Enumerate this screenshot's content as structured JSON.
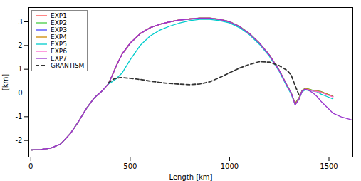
{
  "chart_data": {
    "type": "line",
    "xlabel": "Length [km]",
    "ylabel": "[km]",
    "xlim": [
      -10,
      1620
    ],
    "ylim": [
      -2.7,
      3.6
    ],
    "xticks": [
      0,
      500,
      1000,
      1500
    ],
    "yticks": [
      -2,
      -1,
      0,
      1,
      2,
      3
    ],
    "grid": false,
    "legend": "upper left",
    "series": [
      {
        "name": "EXP1",
        "color": "#ff4444",
        "line_style": "solid",
        "x": [
          0,
          50,
          100,
          150,
          200,
          240,
          280,
          320,
          360,
          390,
          410,
          430,
          460,
          500,
          550,
          600,
          650,
          700,
          750,
          800,
          850,
          900,
          950,
          1000,
          1050,
          1100,
          1150,
          1200,
          1250,
          1290,
          1310,
          1330,
          1350,
          1365,
          1380,
          1400,
          1420,
          1440,
          1460,
          1490,
          1520
        ],
        "values": [
          -2.4,
          -2.38,
          -2.32,
          -2.15,
          -1.7,
          -1.2,
          -0.65,
          -0.2,
          0.1,
          0.38,
          0.75,
          1.15,
          1.65,
          2.1,
          2.5,
          2.75,
          2.9,
          3.0,
          3.08,
          3.12,
          3.15,
          3.15,
          3.1,
          3.0,
          2.8,
          2.5,
          2.1,
          1.6,
          0.95,
          0.3,
          0.0,
          -0.45,
          -0.2,
          0.1,
          0.18,
          0.15,
          0.1,
          0.08,
          0.05,
          -0.05,
          -0.15
        ]
      },
      {
        "name": "EXP2",
        "color": "#44cc44",
        "line_style": "solid",
        "x": [
          0,
          50,
          100,
          150,
          200,
          240,
          280,
          320,
          360,
          390,
          410,
          430,
          460,
          500,
          550,
          600,
          650,
          700,
          750,
          800,
          850,
          900,
          950,
          1000,
          1050,
          1100,
          1150,
          1200,
          1250,
          1290,
          1310,
          1330,
          1350,
          1365,
          1380,
          1400,
          1420,
          1440,
          1460,
          1490,
          1520
        ],
        "values": [
          -2.4,
          -2.38,
          -2.32,
          -2.15,
          -1.7,
          -1.2,
          -0.65,
          -0.2,
          0.1,
          0.38,
          0.75,
          1.15,
          1.65,
          2.1,
          2.5,
          2.75,
          2.9,
          3.0,
          3.08,
          3.12,
          3.16,
          3.16,
          3.11,
          3.01,
          2.81,
          2.51,
          2.11,
          1.61,
          0.96,
          0.31,
          0.01,
          -0.44,
          -0.19,
          0.11,
          0.19,
          0.16,
          0.11,
          0.09,
          0.06,
          -0.04,
          -0.13
        ]
      },
      {
        "name": "EXP3",
        "color": "#4444ff",
        "line_style": "solid",
        "x": [
          0,
          50,
          100,
          150,
          200,
          240,
          280,
          320,
          360,
          390,
          410,
          430,
          460,
          500,
          550,
          600,
          650,
          700,
          750,
          800,
          850,
          900,
          950,
          1000,
          1050,
          1100,
          1150,
          1200,
          1250,
          1290,
          1310,
          1330,
          1350,
          1365,
          1380,
          1400,
          1420,
          1440,
          1460,
          1490,
          1520
        ],
        "values": [
          -2.4,
          -2.38,
          -2.32,
          -2.15,
          -1.7,
          -1.2,
          -0.65,
          -0.2,
          0.1,
          0.38,
          0.75,
          1.15,
          1.65,
          2.1,
          2.5,
          2.75,
          2.9,
          3.0,
          3.07,
          3.11,
          3.14,
          3.14,
          3.09,
          2.99,
          2.79,
          2.49,
          2.09,
          1.59,
          0.94,
          0.29,
          -0.01,
          -0.46,
          -0.21,
          0.09,
          0.17,
          0.14,
          0.09,
          0.07,
          0.04,
          -0.06,
          -0.15
        ]
      },
      {
        "name": "EXP4",
        "color": "#cc8800",
        "line_style": "solid",
        "x": [
          0,
          50,
          100,
          150,
          200,
          240,
          280,
          320,
          360,
          390,
          410,
          430,
          460,
          500,
          550,
          600,
          650,
          700,
          750,
          800,
          850,
          900,
          950,
          1000,
          1050,
          1100,
          1150,
          1200,
          1250,
          1290,
          1310,
          1330,
          1350,
          1365,
          1380,
          1400,
          1420,
          1440,
          1460,
          1490,
          1520
        ],
        "values": [
          -2.4,
          -2.38,
          -2.32,
          -2.15,
          -1.7,
          -1.2,
          -0.65,
          -0.2,
          0.1,
          0.38,
          0.75,
          1.15,
          1.65,
          2.1,
          2.5,
          2.75,
          2.9,
          3.0,
          3.08,
          3.12,
          3.15,
          3.15,
          3.1,
          3.0,
          2.8,
          2.5,
          2.1,
          1.6,
          0.95,
          0.3,
          0.0,
          -0.45,
          -0.2,
          0.1,
          0.18,
          0.15,
          0.1,
          0.08,
          0.05,
          -0.05,
          -0.15
        ]
      },
      {
        "name": "EXP5",
        "color": "#00cccc",
        "line_style": "solid",
        "x": [
          0,
          50,
          100,
          150,
          200,
          240,
          280,
          320,
          360,
          390,
          400,
          410,
          430,
          460,
          500,
          550,
          600,
          650,
          700,
          750,
          800,
          850,
          900,
          950,
          1000,
          1050,
          1100,
          1150,
          1200,
          1250,
          1290,
          1310,
          1330,
          1350,
          1365,
          1380,
          1400,
          1420,
          1440,
          1460,
          1490,
          1520
        ],
        "values": [
          -2.4,
          -2.38,
          -2.32,
          -2.15,
          -1.7,
          -1.2,
          -0.65,
          -0.2,
          0.1,
          0.38,
          0.42,
          0.48,
          0.6,
          0.85,
          1.4,
          2.0,
          2.4,
          2.65,
          2.82,
          2.95,
          3.05,
          3.1,
          3.1,
          3.05,
          2.95,
          2.75,
          2.45,
          2.05,
          1.55,
          0.9,
          0.25,
          -0.05,
          -0.5,
          -0.25,
          0.05,
          0.13,
          0.1,
          0.08,
          0.05,
          -0.05,
          -0.15,
          -0.25
        ]
      },
      {
        "name": "EXP6",
        "color": "#ff66cc",
        "line_style": "solid",
        "x": [
          0,
          50,
          100,
          150,
          200,
          240,
          280,
          320,
          360,
          390,
          410,
          430,
          460,
          500,
          550,
          600,
          650,
          700,
          750,
          800,
          850,
          900,
          950,
          1000,
          1050,
          1100,
          1150,
          1200,
          1250,
          1290,
          1310,
          1330,
          1350,
          1365,
          1380,
          1400,
          1420,
          1440,
          1460,
          1490,
          1520
        ],
        "values": [
          -2.4,
          -2.38,
          -2.32,
          -2.15,
          -1.7,
          -1.2,
          -0.65,
          -0.2,
          0.1,
          0.38,
          0.75,
          1.15,
          1.65,
          2.1,
          2.5,
          2.75,
          2.9,
          3.0,
          3.08,
          3.12,
          3.15,
          3.15,
          3.1,
          3.0,
          2.8,
          2.5,
          2.1,
          1.6,
          0.95,
          0.3,
          0.0,
          -0.5,
          -0.25,
          0.08,
          0.16,
          0.13,
          0.08,
          0.06,
          0.03,
          -0.07,
          -0.17
        ]
      },
      {
        "name": "EXP7",
        "color": "#9933cc",
        "line_style": "solid",
        "x": [
          0,
          50,
          100,
          150,
          200,
          240,
          280,
          320,
          360,
          390,
          410,
          430,
          460,
          500,
          550,
          600,
          650,
          700,
          750,
          800,
          850,
          900,
          950,
          1000,
          1050,
          1100,
          1150,
          1200,
          1250,
          1290,
          1310,
          1330,
          1350,
          1365,
          1380,
          1400,
          1420,
          1440,
          1460,
          1490,
          1520,
          1560,
          1600,
          1620
        ],
        "values": [
          -2.4,
          -2.38,
          -2.32,
          -2.15,
          -1.7,
          -1.2,
          -0.65,
          -0.2,
          0.1,
          0.38,
          0.75,
          1.15,
          1.65,
          2.1,
          2.5,
          2.75,
          2.9,
          3.0,
          3.08,
          3.12,
          3.15,
          3.15,
          3.1,
          3.0,
          2.8,
          2.5,
          2.1,
          1.6,
          0.95,
          0.3,
          0.0,
          -0.5,
          -0.25,
          0.08,
          0.16,
          0.1,
          0.0,
          -0.15,
          -0.35,
          -0.6,
          -0.85,
          -1.0,
          -1.1,
          -1.15
        ]
      },
      {
        "name": "GRANTISM",
        "color": "#333333",
        "line_style": "dashed",
        "x": [
          390,
          420,
          450,
          500,
          550,
          600,
          650,
          700,
          750,
          800,
          850,
          900,
          950,
          1000,
          1050,
          1100,
          1150,
          1200,
          1250,
          1290,
          1310,
          1330,
          1350
        ],
        "values": [
          0.42,
          0.6,
          0.65,
          0.62,
          0.57,
          0.5,
          0.44,
          0.4,
          0.37,
          0.35,
          0.38,
          0.47,
          0.65,
          0.85,
          1.05,
          1.2,
          1.32,
          1.3,
          1.15,
          0.95,
          0.75,
          0.3,
          -0.1
        ]
      }
    ]
  }
}
